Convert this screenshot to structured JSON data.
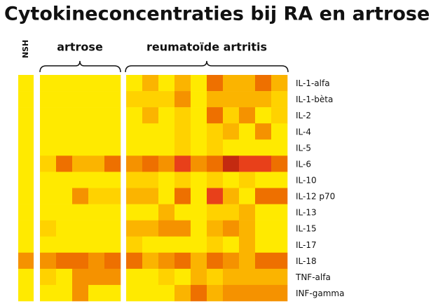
{
  "chart_data": {
    "type": "heatmap",
    "title": "Cytokineconcentraties bij RA en artrose",
    "groups": [
      {
        "label": "NSH"
      },
      {
        "label": "artrose"
      },
      {
        "label": "reumatoïde artritis"
      }
    ],
    "rows": [
      {
        "label": "IL-1-alfa",
        "cells": [
          [
            "#ffea00"
          ],
          [
            "#ffea00",
            "#ffea00",
            "#ffea00",
            "#ffea00",
            "#ffea00"
          ],
          [
            "#ffea00",
            "#fbb400",
            "#ffea00",
            "#fbb400",
            "#ffea00",
            "#ee7000",
            "#fbb400",
            "#fbb400",
            "#ee7000",
            "#fbb400"
          ]
        ]
      },
      {
        "label": "IL-1-bèta",
        "cells": [
          [
            "#ffea00"
          ],
          [
            "#ffea00",
            "#ffea00",
            "#ffea00",
            "#ffea00",
            "#ffea00"
          ],
          [
            "#ffd200",
            "#ffd200",
            "#ffd200",
            "#f59200",
            "#ffea00",
            "#fbb400",
            "#fbb400",
            "#fbb400",
            "#fbb400",
            "#ffd200"
          ]
        ]
      },
      {
        "label": "IL-2",
        "cells": [
          [
            "#ffea00"
          ],
          [
            "#ffea00",
            "#ffea00",
            "#ffea00",
            "#ffea00",
            "#ffea00"
          ],
          [
            "#ffea00",
            "#fbb400",
            "#ffea00",
            "#ffd200",
            "#ffea00",
            "#ee7000",
            "#ffd200",
            "#f59200",
            "#ffea00",
            "#ffd200"
          ]
        ]
      },
      {
        "label": "IL-4",
        "cells": [
          [
            "#ffea00"
          ],
          [
            "#ffea00",
            "#ffea00",
            "#ffea00",
            "#ffea00",
            "#ffea00"
          ],
          [
            "#ffea00",
            "#ffea00",
            "#ffea00",
            "#ffd200",
            "#ffea00",
            "#ffd200",
            "#fbb400",
            "#ffea00",
            "#f59200",
            "#ffea00"
          ]
        ]
      },
      {
        "label": "IL-5",
        "cells": [
          [
            "#ffea00"
          ],
          [
            "#ffea00",
            "#ffea00",
            "#ffea00",
            "#ffea00",
            "#ffea00"
          ],
          [
            "#ffea00",
            "#ffea00",
            "#ffea00",
            "#ffd200",
            "#ffea00",
            "#ffd200",
            "#ffea00",
            "#ffea00",
            "#ffea00",
            "#ffea00"
          ]
        ]
      },
      {
        "label": "IL-6",
        "cells": [
          [
            "#ffea00"
          ],
          [
            "#ffd200",
            "#ee7000",
            "#fbb400",
            "#fbb400",
            "#ee7000"
          ],
          [
            "#f59200",
            "#ee7000",
            "#f59200",
            "#e8401a",
            "#f59200",
            "#ee7000",
            "#c42a10",
            "#e8401a",
            "#e8401a",
            "#ee7000"
          ]
        ]
      },
      {
        "label": "IL-10",
        "cells": [
          [
            "#ffea00"
          ],
          [
            "#ffea00",
            "#ffea00",
            "#ffea00",
            "#ffea00",
            "#ffea00"
          ],
          [
            "#ffd200",
            "#ffd200",
            "#ffea00",
            "#ffd200",
            "#ffea00",
            "#ffd200",
            "#ffea00",
            "#ffd200",
            "#ffea00",
            "#ffea00"
          ]
        ]
      },
      {
        "label": "IL-12 p70",
        "cells": [
          [
            "#ffea00"
          ],
          [
            "#ffea00",
            "#ffea00",
            "#f59200",
            "#ffd200",
            "#ffd200"
          ],
          [
            "#fbb400",
            "#fbb400",
            "#ffea00",
            "#ee7000",
            "#ffea00",
            "#e8401a",
            "#fbb400",
            "#ffea00",
            "#ee7000",
            "#ee7000"
          ]
        ]
      },
      {
        "label": "IL-13",
        "cells": [
          [
            "#ffea00"
          ],
          [
            "#ffea00",
            "#ffea00",
            "#ffea00",
            "#ffea00",
            "#ffea00"
          ],
          [
            "#ffea00",
            "#ffea00",
            "#fbb400",
            "#ffea00",
            "#ffea00",
            "#ffd200",
            "#ffd200",
            "#fbb400",
            "#ffea00",
            "#ffea00"
          ]
        ]
      },
      {
        "label": "IL-15",
        "cells": [
          [
            "#ffea00"
          ],
          [
            "#ffd200",
            "#ffea00",
            "#ffea00",
            "#ffea00",
            "#ffea00"
          ],
          [
            "#fbb400",
            "#fbb400",
            "#f59200",
            "#f59200",
            "#ffea00",
            "#fbb400",
            "#f59200",
            "#fbb400",
            "#ffea00",
            "#ffea00"
          ]
        ]
      },
      {
        "label": "IL-17",
        "cells": [
          [
            "#ffea00"
          ],
          [
            "#ffea00",
            "#ffea00",
            "#ffea00",
            "#ffea00",
            "#ffea00"
          ],
          [
            "#ffd200",
            "#ffea00",
            "#ffea00",
            "#ffea00",
            "#ffea00",
            "#ffd200",
            "#ffea00",
            "#fbb400",
            "#ffea00",
            "#ffea00"
          ]
        ]
      },
      {
        "label": "IL-18",
        "cells": [
          [
            "#f59200"
          ],
          [
            "#f59200",
            "#ee7000",
            "#ee7000",
            "#f59200",
            "#ee7000"
          ],
          [
            "#ee7000",
            "#fbb400",
            "#f59200",
            "#ee7000",
            "#fbb400",
            "#ee7000",
            "#f59200",
            "#fbb400",
            "#ee7000",
            "#ee7000"
          ]
        ]
      },
      {
        "label": "TNF-alfa",
        "cells": [
          [
            "#ffea00"
          ],
          [
            "#ffd200",
            "#ffea00",
            "#f59200",
            "#f59200",
            "#f59200"
          ],
          [
            "#ffea00",
            "#ffea00",
            "#ffd200",
            "#ffea00",
            "#fbb400",
            "#ffd200",
            "#fbb400",
            "#fbb400",
            "#fbb400",
            "#fbb400"
          ]
        ]
      },
      {
        "label": "INF-gamma",
        "cells": [
          [
            "#ffea00"
          ],
          [
            "#ffea00",
            "#ffea00",
            "#f59200",
            "#ffea00",
            "#ffea00"
          ],
          [
            "#ffea00",
            "#ffea00",
            "#ffea00",
            "#fbb400",
            "#ee7000",
            "#fbb400",
            "#f59200",
            "#f59200",
            "#f59200",
            "#f59200"
          ]
        ]
      }
    ]
  }
}
